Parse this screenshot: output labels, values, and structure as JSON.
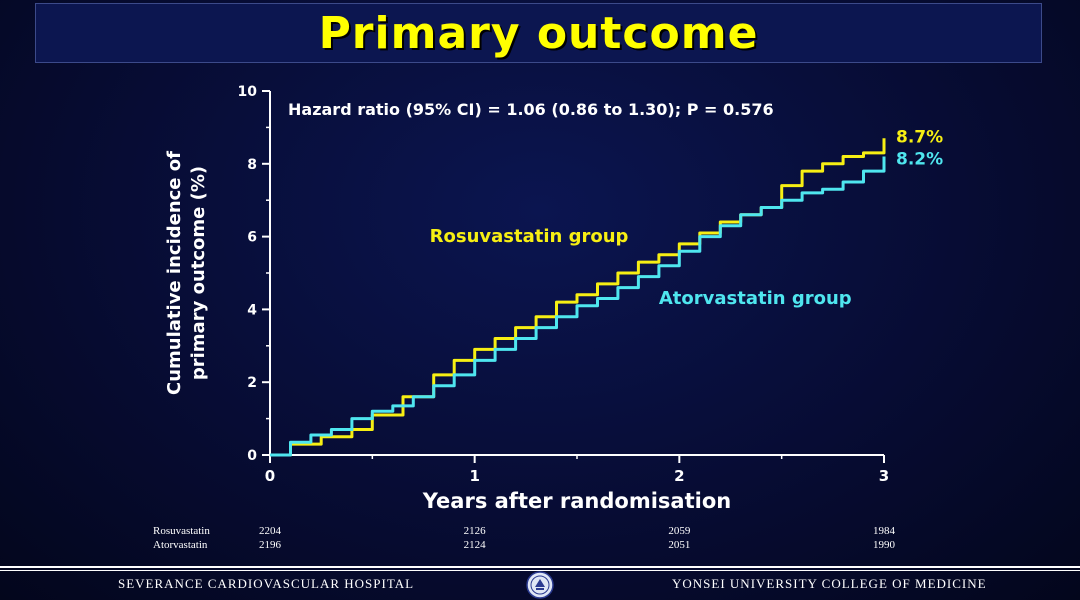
{
  "slide": {
    "title": "Primary outcome",
    "footer_left": "SEVERANCE CARDIOVASCULAR HOSPITAL",
    "footer_right": "YONSEI UNIVERSITY COLLEGE OF MEDICINE"
  },
  "colors": {
    "rosuvastatin": "#f7ef13",
    "atorvastatin": "#4fe6ef",
    "title": "#ffff00",
    "axis": "#ffffff"
  },
  "chart_data": {
    "type": "line",
    "title": "",
    "annotation": "Hazard ratio (95% CI) = 1.06 (0.86 to 1.30); P = 0.576",
    "xlabel": "Years after randomisation",
    "ylabel_lines": [
      "Cumulative incidence of",
      "primary outcome (%)"
    ],
    "xlim": [
      0,
      3
    ],
    "ylim": [
      0,
      10
    ],
    "xticks": [
      0,
      1,
      2,
      3
    ],
    "yticks": [
      0,
      2,
      4,
      6,
      8,
      10
    ],
    "grid": false,
    "series": [
      {
        "name": "Rosuvastatin group",
        "end_label": "8.7%",
        "x": [
          0,
          0.1,
          0.25,
          0.4,
          0.5,
          0.65,
          0.8,
          0.9,
          1.0,
          1.1,
          1.2,
          1.3,
          1.4,
          1.5,
          1.6,
          1.7,
          1.8,
          1.9,
          2.0,
          2.1,
          2.2,
          2.3,
          2.4,
          2.5,
          2.6,
          2.7,
          2.8,
          2.9,
          3.0
        ],
        "y": [
          0,
          0.3,
          0.5,
          0.7,
          1.1,
          1.6,
          2.2,
          2.6,
          2.9,
          3.2,
          3.5,
          3.8,
          4.2,
          4.4,
          4.7,
          5.0,
          5.3,
          5.5,
          5.8,
          6.1,
          6.4,
          6.6,
          6.8,
          7.4,
          7.8,
          8.0,
          8.2,
          8.3,
          8.7
        ]
      },
      {
        "name": "Atorvastatin group",
        "end_label": "8.2%",
        "x": [
          0,
          0.1,
          0.2,
          0.3,
          0.4,
          0.5,
          0.6,
          0.7,
          0.8,
          0.9,
          1.0,
          1.1,
          1.2,
          1.3,
          1.4,
          1.5,
          1.6,
          1.7,
          1.8,
          1.9,
          2.0,
          2.1,
          2.2,
          2.3,
          2.4,
          2.5,
          2.6,
          2.7,
          2.8,
          2.9,
          3.0
        ],
        "y": [
          0,
          0.35,
          0.55,
          0.7,
          1.0,
          1.2,
          1.35,
          1.6,
          1.9,
          2.2,
          2.6,
          2.9,
          3.2,
          3.5,
          3.8,
          4.1,
          4.3,
          4.6,
          4.9,
          5.2,
          5.6,
          6.0,
          6.3,
          6.6,
          6.8,
          7.0,
          7.2,
          7.3,
          7.5,
          7.8,
          8.2
        ]
      }
    ],
    "series_labels": [
      {
        "text": "Rosuvastatin group",
        "x": 0.78,
        "y": 5.85
      },
      {
        "text": "Atorvastatin group",
        "x": 1.9,
        "y": 4.15
      }
    ],
    "at_risk": {
      "times": [
        0,
        1,
        2,
        3
      ],
      "rows": [
        {
          "label": "Rosuvastatin",
          "values": [
            "2204",
            "2126",
            "2059",
            "1984"
          ]
        },
        {
          "label": "Atorvastatin",
          "values": [
            "2196",
            "2124",
            "2051",
            "1990"
          ]
        }
      ]
    }
  }
}
